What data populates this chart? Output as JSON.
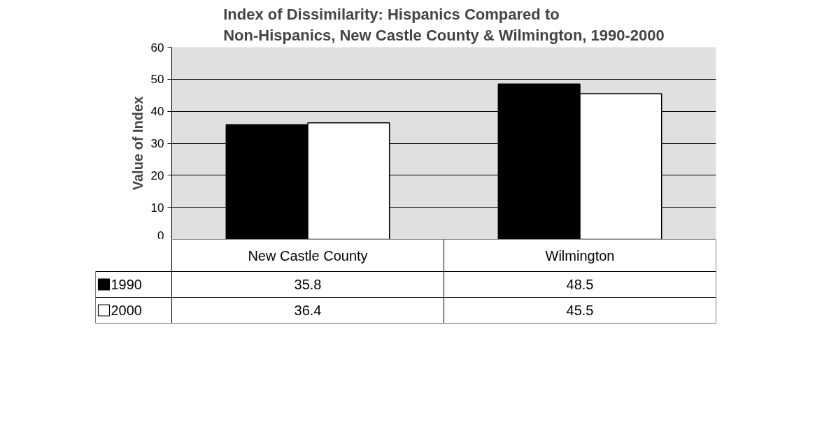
{
  "chart_data": {
    "type": "bar",
    "title": "Index of Dissimilarity: Hispanics Compared to\nNon-Hispanics, New Castle County & Wilmington, 1990-2000",
    "ylabel": "Value of Index",
    "categories": [
      "New Castle County",
      "Wilmington"
    ],
    "series": [
      {
        "name": "1990",
        "color": "#000000",
        "values": [
          35.8,
          48.5
        ]
      },
      {
        "name": "2000",
        "color": "#ffffff",
        "values": [
          36.4,
          45.5
        ]
      }
    ],
    "ylim": [
      0,
      60
    ],
    "yticks": [
      0,
      10,
      20,
      30,
      40,
      50,
      60
    ],
    "grid": "y",
    "legend": "bottom left",
    "data_labels": true
  }
}
